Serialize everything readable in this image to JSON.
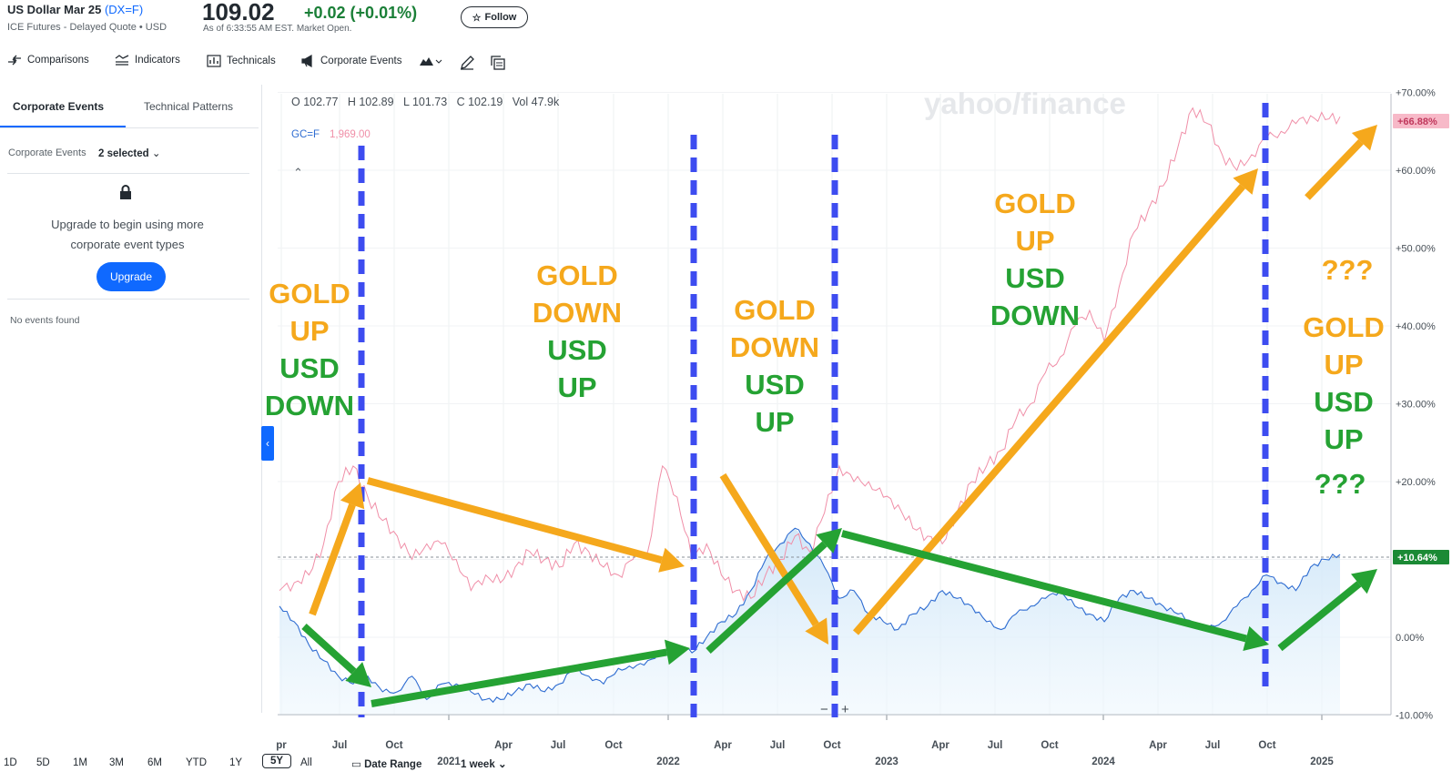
{
  "header": {
    "title": "US Dollar Mar 25",
    "ticker": "(DX=F)",
    "subtitle": "ICE Futures - Delayed Quote • USD",
    "price": "109.02",
    "change": "+0.02 (+0.01%)",
    "as_of": "As of 6:33:55 AM EST. Market Open.",
    "follow_label": "Follow"
  },
  "toolbar": {
    "comparisons": "Comparisons",
    "indicators": "Indicators",
    "technicals": "Technicals",
    "corporate_events": "Corporate Events"
  },
  "left_panel": {
    "tabs": [
      "Corporate Events",
      "Technical Patterns"
    ],
    "filter_label": "Corporate Events",
    "filter_value": "2 selected",
    "upgrade_text_1": "Upgrade to begin using more",
    "upgrade_text_2": "corporate event types",
    "upgrade_button": "Upgrade",
    "no_events": "No events found"
  },
  "chart_header": {
    "ohlc": "O 102.77   H 102.89   L 101.73   C 102.19   Vol 47.9k",
    "compare_symbol": "GC=F",
    "compare_value": "1,969.00",
    "watermark": "yahoo/finance"
  },
  "range_bar": {
    "ranges": [
      "1D",
      "5D",
      "1M",
      "3M",
      "6M",
      "YTD",
      "1Y",
      "5Y",
      "All"
    ],
    "selected": "5Y",
    "date_range": "Date Range",
    "interval": "1 week"
  },
  "colors": {
    "usd_line": "#2e6cd1",
    "gold_line": "#f08fa8",
    "orange_arrow": "#f5a81c",
    "green_arrow": "#25a233",
    "divider": "#3d4cf0",
    "usd_badge": "#1b8a35",
    "gold_badge": "#f7b9c8"
  },
  "chart_data": {
    "type": "line",
    "x_ticks": [
      "pr",
      "Jul",
      "Oct",
      "2021",
      "Apr",
      "Jul",
      "Oct",
      "2022",
      "Apr",
      "Jul",
      "Oct",
      "2023",
      "Apr",
      "Jul",
      "Oct",
      "2024",
      "Apr",
      "Jul",
      "Oct",
      "2025"
    ],
    "y_ticks": [
      "+70.00%",
      "+60.00%",
      "+50.00%",
      "+40.00%",
      "+30.00%",
      "+20.00%",
      "+10.00%",
      "0.00%",
      "-10.00%"
    ],
    "ylim": [
      -10,
      70
    ],
    "series": [
      {
        "name": "DX=F",
        "badge": "+10.64%",
        "values": [
          4,
          2,
          -1,
          -3,
          -5,
          -6,
          -5,
          -7,
          -7,
          -5,
          -8,
          -6,
          -6,
          -7,
          -8,
          -8,
          -7,
          -6,
          -7,
          -6,
          -4,
          -5,
          -6,
          -4,
          -4,
          -3,
          -2,
          -1,
          -2,
          0,
          2,
          3,
          6,
          10,
          12,
          14,
          12,
          9,
          5,
          6,
          3,
          2,
          1,
          3,
          4,
          6,
          5,
          4,
          2,
          1,
          3,
          4,
          5,
          6,
          4,
          3,
          2,
          5,
          6,
          5,
          4,
          3,
          2,
          1,
          2,
          4,
          6,
          8,
          7,
          6,
          9,
          10,
          10.64
        ]
      },
      {
        "name": "GC=F",
        "badge": "+66.88%",
        "values": [
          6,
          7,
          8,
          12,
          20,
          22,
          18,
          15,
          13,
          10,
          12,
          12,
          10,
          6,
          8,
          7,
          9,
          11,
          10,
          9,
          12,
          11,
          9,
          8,
          10,
          11,
          22,
          18,
          10,
          12,
          8,
          6,
          5,
          8,
          10,
          13,
          11,
          16,
          22,
          20,
          20,
          18,
          17,
          14,
          13,
          12,
          16,
          20,
          22,
          24,
          28,
          30,
          34,
          36,
          40,
          42,
          38,
          45,
          52,
          55,
          58,
          63,
          68,
          66,
          62,
          60,
          62,
          64,
          65,
          66,
          67,
          66.5,
          66.88
        ]
      }
    ],
    "annotations": [
      "GOLD UP USD DOWN",
      "GOLD DOWN USD UP",
      "GOLD DOWN USD UP",
      "GOLD UP USD DOWN",
      "???",
      "GOLD UP USD UP",
      "???"
    ]
  },
  "annotations": {
    "a1": {
      "l1": "GOLD",
      "l2": "UP",
      "l3": "USD",
      "l4": "DOWN"
    },
    "a2": {
      "l1": "GOLD",
      "l2": "DOWN",
      "l3": "USD",
      "l4": "UP"
    },
    "a3": {
      "l1": "GOLD",
      "l2": "DOWN",
      "l3": "USD",
      "l4": "UP"
    },
    "a4": {
      "l1": "GOLD",
      "l2": "UP",
      "l3": "USD",
      "l4": "DOWN"
    },
    "a5": {
      "q1": "???",
      "l1": "GOLD",
      "l2": "UP",
      "l3": "USD",
      "l4": "UP",
      "q2": "???"
    }
  },
  "zoom": {
    "minus": "−",
    "plus": "+"
  }
}
